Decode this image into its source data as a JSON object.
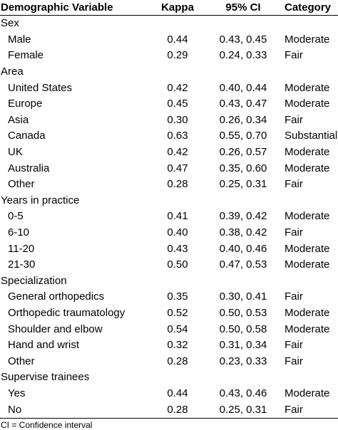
{
  "table": {
    "headers": [
      "Demographic Variable",
      "Kappa",
      "95% CI",
      "Category"
    ],
    "groups": [
      {
        "name": "Sex",
        "rows": [
          {
            "label": "Male",
            "kappa": "0.44",
            "ci": "0.43, 0.45",
            "category": "Moderate"
          },
          {
            "label": "Female",
            "kappa": "0.29",
            "ci": "0.24, 0.33",
            "category": "Fair"
          }
        ]
      },
      {
        "name": "Area",
        "rows": [
          {
            "label": "United States",
            "kappa": "0.42",
            "ci": "0.40, 0.44",
            "category": "Moderate"
          },
          {
            "label": "Europe",
            "kappa": "0.45",
            "ci": "0.43, 0.47",
            "category": "Moderate"
          },
          {
            "label": "Asia",
            "kappa": "0.30",
            "ci": "0.26, 0.34",
            "category": "Fair"
          },
          {
            "label": "Canada",
            "kappa": "0.63",
            "ci": "0.55, 0.70",
            "category": "Substantial"
          },
          {
            "label": "UK",
            "kappa": "0.42",
            "ci": "0.26, 0.57",
            "category": "Moderate"
          },
          {
            "label": "Australia",
            "kappa": "0.47",
            "ci": "0.35, 0.60",
            "category": "Moderate"
          },
          {
            "label": "Other",
            "kappa": "0.28",
            "ci": "0.25, 0.31",
            "category": "Fair"
          }
        ]
      },
      {
        "name": "Years in practice",
        "rows": [
          {
            "label": "0-5",
            "kappa": "0.41",
            "ci": "0.39, 0.42",
            "category": "Moderate"
          },
          {
            "label": "6-10",
            "kappa": "0.40",
            "ci": "0.38, 0.42",
            "category": "Fair"
          },
          {
            "label": "11-20",
            "kappa": "0.43",
            "ci": "0.40, 0.46",
            "category": "Moderate"
          },
          {
            "label": "21-30",
            "kappa": "0.50",
            "ci": "0.47, 0.53",
            "category": "Moderate"
          }
        ]
      },
      {
        "name": "Specialization",
        "rows": [
          {
            "label": "General orthopedics",
            "kappa": "0.35",
            "ci": "0.30, 0.41",
            "category": "Fair"
          },
          {
            "label": "Orthopedic traumatology",
            "kappa": "0.52",
            "ci": "0.50, 0.53",
            "category": "Moderate"
          },
          {
            "label": "Shoulder and elbow",
            "kappa": "0.54",
            "ci": "0.50, 0.58",
            "category": "Moderate"
          },
          {
            "label": "Hand and wrist",
            "kappa": "0.32",
            "ci": "0.31, 0.34",
            "category": "Fair"
          },
          {
            "label": "Other",
            "kappa": "0.28",
            "ci": "0.23, 0.33",
            "category": "Fair"
          }
        ]
      },
      {
        "name": "Supervise trainees",
        "rows": [
          {
            "label": "Yes",
            "kappa": "0.44",
            "ci": "0.43, 0.46",
            "category": "Moderate"
          },
          {
            "label": "No",
            "kappa": "0.28",
            "ci": "0.25, 0.31",
            "category": "Fair"
          }
        ]
      }
    ]
  },
  "footnote": "CI = Confidence interval"
}
